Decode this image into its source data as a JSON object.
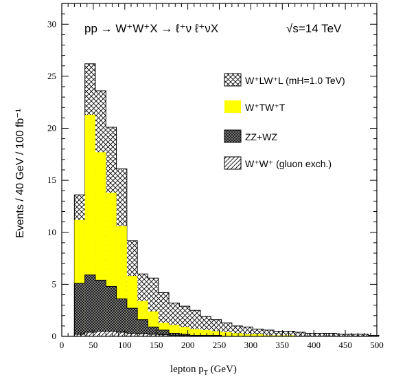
{
  "chart_data": {
    "type": "bar",
    "stacked": true,
    "histogram": true,
    "title": "pp → W⁺W⁺X → ℓ⁺ν ℓ⁺νX",
    "energy": "√s=14 TeV",
    "xlabel_main": "lepton p",
    "xlabel_sub": "T",
    "xlabel_unit": " (GeV)",
    "ylabel": "Events / 40 GeV / 100 fb⁻¹",
    "xlim": [
      0,
      500
    ],
    "ylim": [
      0,
      32
    ],
    "x_ticks": [
      0,
      50,
      100,
      150,
      200,
      250,
      300,
      350,
      400,
      450,
      500
    ],
    "y_ticks": [
      0,
      5,
      10,
      15,
      20,
      25,
      30
    ],
    "legend_position": "right",
    "bin_width": 16.67,
    "bin_edges": [
      20,
      36.67,
      53.33,
      70,
      86.67,
      103.33,
      120,
      136.67,
      153.33,
      170,
      186.67,
      203.33,
      220,
      236.67,
      253.33,
      270,
      286.67,
      303.33,
      320,
      336.67,
      353.33,
      370,
      386.67,
      403.33,
      420,
      436.67,
      453.33,
      470,
      486.67,
      503.33
    ],
    "series": [
      {
        "name": "W⁺W⁺ (gluon exch.)",
        "pattern": "hatch",
        "cumulative": [
          0.2,
          0.4,
          0.5,
          0.5,
          0.4,
          0.3,
          0.25,
          0.2,
          0.15,
          0.1,
          0.1,
          0.05,
          0.05,
          0.05,
          0,
          0,
          0,
          0,
          0,
          0,
          0,
          0,
          0,
          0,
          0,
          0,
          0,
          0,
          0
        ]
      },
      {
        "name": "ZZ+WZ",
        "pattern": "dark-crosshatch",
        "cumulative": [
          5.1,
          5.9,
          5.4,
          4.8,
          3.6,
          2.7,
          1.6,
          0.9,
          0.6,
          0.3,
          0.2,
          0.1,
          0.1,
          0.1,
          0,
          0,
          0,
          0,
          0,
          0,
          0,
          0,
          0,
          0,
          0,
          0,
          0,
          0,
          0
        ]
      },
      {
        "name": "W⁺TW⁺T",
        "pattern": "yellow",
        "color": "#ffff00",
        "cumulative": [
          11.2,
          21.3,
          17.7,
          13.8,
          10.6,
          5.8,
          3.4,
          2.4,
          1.3,
          1.1,
          0.9,
          0.7,
          0.6,
          0.5,
          0.4,
          0.3,
          0.2,
          0.2,
          0.1,
          0.1,
          0.1,
          0,
          0,
          0,
          0,
          0,
          0,
          0,
          0
        ]
      },
      {
        "name": "W⁺LW⁺L (mH=1.0 TeV)",
        "pattern": "light-crosshatch",
        "cumulative": [
          13.6,
          26.2,
          23.6,
          20.1,
          16.1,
          9.2,
          6.0,
          5.6,
          4.2,
          3.2,
          2.9,
          2.5,
          1.9,
          1.6,
          1.3,
          1.0,
          0.9,
          0.7,
          0.6,
          0.5,
          0.5,
          0.4,
          0.3,
          0.3,
          0.3,
          0.2,
          0.2,
          0.2,
          0.1
        ]
      }
    ]
  }
}
